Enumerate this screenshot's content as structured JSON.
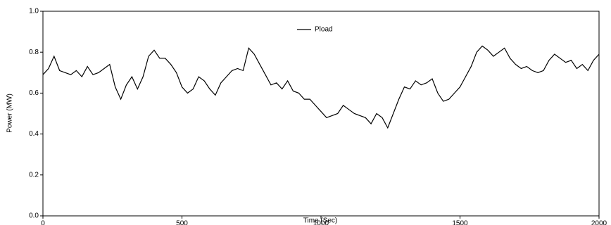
{
  "chart_data": {
    "type": "line",
    "xlabel": "Time (Sec)",
    "ylabel": "Power (MW)",
    "x": [
      0,
      20,
      40,
      60,
      80,
      100,
      120,
      140,
      160,
      180,
      200,
      220,
      240,
      260,
      280,
      300,
      320,
      340,
      360,
      380,
      400,
      420,
      440,
      460,
      480,
      500,
      520,
      540,
      560,
      580,
      600,
      620,
      640,
      660,
      680,
      700,
      720,
      740,
      760,
      780,
      800,
      820,
      840,
      860,
      880,
      900,
      920,
      940,
      960,
      980,
      1000,
      1020,
      1040,
      1060,
      1080,
      1100,
      1120,
      1140,
      1160,
      1180,
      1200,
      1220,
      1240,
      1260,
      1280,
      1300,
      1320,
      1340,
      1360,
      1380,
      1400,
      1420,
      1440,
      1460,
      1480,
      1500,
      1520,
      1540,
      1560,
      1580,
      1600,
      1620,
      1640,
      1660,
      1680,
      1700,
      1720,
      1740,
      1760,
      1780,
      1800,
      1820,
      1840,
      1860,
      1880,
      1900,
      1920,
      1940,
      1960,
      1980,
      2000
    ],
    "series": [
      {
        "name": "Pload",
        "color": "#000000",
        "values": [
          0.69,
          0.72,
          0.78,
          0.71,
          0.7,
          0.69,
          0.71,
          0.68,
          0.73,
          0.69,
          0.7,
          0.72,
          0.74,
          0.63,
          0.57,
          0.64,
          0.68,
          0.62,
          0.68,
          0.78,
          0.81,
          0.77,
          0.77,
          0.74,
          0.7,
          0.63,
          0.6,
          0.62,
          0.68,
          0.66,
          0.62,
          0.59,
          0.65,
          0.68,
          0.71,
          0.72,
          0.71,
          0.82,
          0.79,
          0.74,
          0.69,
          0.64,
          0.65,
          0.62,
          0.66,
          0.61,
          0.6,
          0.57,
          0.57,
          0.54,
          0.51,
          0.48,
          0.49,
          0.5,
          0.54,
          0.52,
          0.5,
          0.49,
          0.48,
          0.45,
          0.5,
          0.48,
          0.43,
          0.5,
          0.57,
          0.63,
          0.62,
          0.66,
          0.64,
          0.65,
          0.67,
          0.6,
          0.56,
          0.57,
          0.6,
          0.63,
          0.68,
          0.73,
          0.8,
          0.83,
          0.81,
          0.78,
          0.8,
          0.82,
          0.77,
          0.74,
          0.72,
          0.73,
          0.71,
          0.7,
          0.71,
          0.76,
          0.79,
          0.77,
          0.75,
          0.76,
          0.72,
          0.74,
          0.71,
          0.76,
          0.79
        ]
      }
    ],
    "xlim": [
      0,
      2000
    ],
    "xticks": [
      0,
      500,
      1000,
      1500,
      2000
    ],
    "ylim": [
      0,
      1
    ],
    "yticks": [
      {
        "value": 0,
        "label": "0.0"
      },
      0.2,
      0.4,
      0.6,
      0.8,
      {
        "value": 1,
        "label": "1.0"
      }
    ],
    "grid": false,
    "legend": "top"
  }
}
